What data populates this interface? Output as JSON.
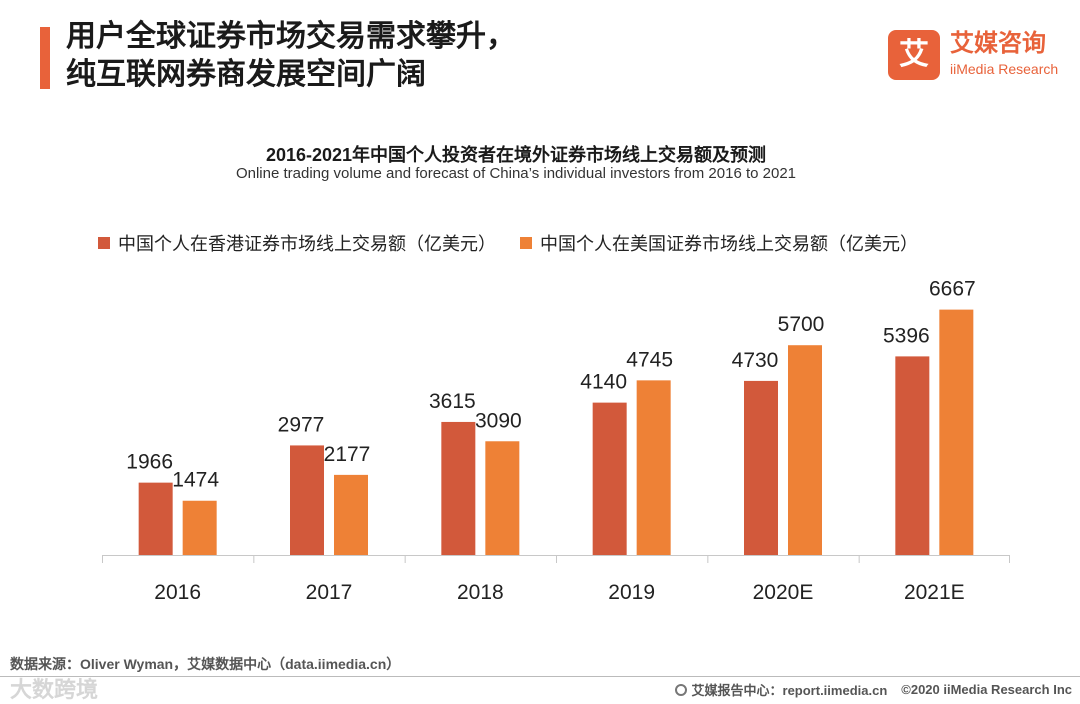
{
  "header": {
    "title_line1": "用户全球证券市场交易需求攀升，",
    "title_line2": "纯互联网券商发展空间广阔"
  },
  "logo": {
    "mark": "艾",
    "cn": "艾媒咨询",
    "en": "iiMedia Research"
  },
  "chart_data": {
    "type": "bar",
    "title": "2016-2021年中国个人投资者在境外证券市场线上交易额及预测",
    "subtitle": "Online trading volume and forecast of China’s individual investors from 2016 to 2021",
    "categories": [
      "2016",
      "2017",
      "2018",
      "2019",
      "2020E",
      "2021E"
    ],
    "series": [
      {
        "name": "中国个人在香港证券市场线上交易额（亿美元）",
        "color": "#D2593B",
        "values": [
          1966,
          2977,
          3615,
          4140,
          4730,
          5396
        ]
      },
      {
        "name": "中国个人在美国证券市场线上交易额（亿美元）",
        "color": "#EE8136",
        "values": [
          1474,
          2177,
          3090,
          4745,
          5700,
          6667
        ]
      }
    ],
    "ylim": [
      0,
      7200
    ],
    "grid": false,
    "legend_position": "top-left",
    "xlabel": "",
    "ylabel": ""
  },
  "footer": {
    "source": "数据来源：Oliver Wyman，艾媒数据中心（data.iimedia.cn）",
    "report": "艾媒报告中心：report.iimedia.cn",
    "copyright": "©2020 iiMedia Research Inc",
    "watermark": "大数跨境"
  }
}
